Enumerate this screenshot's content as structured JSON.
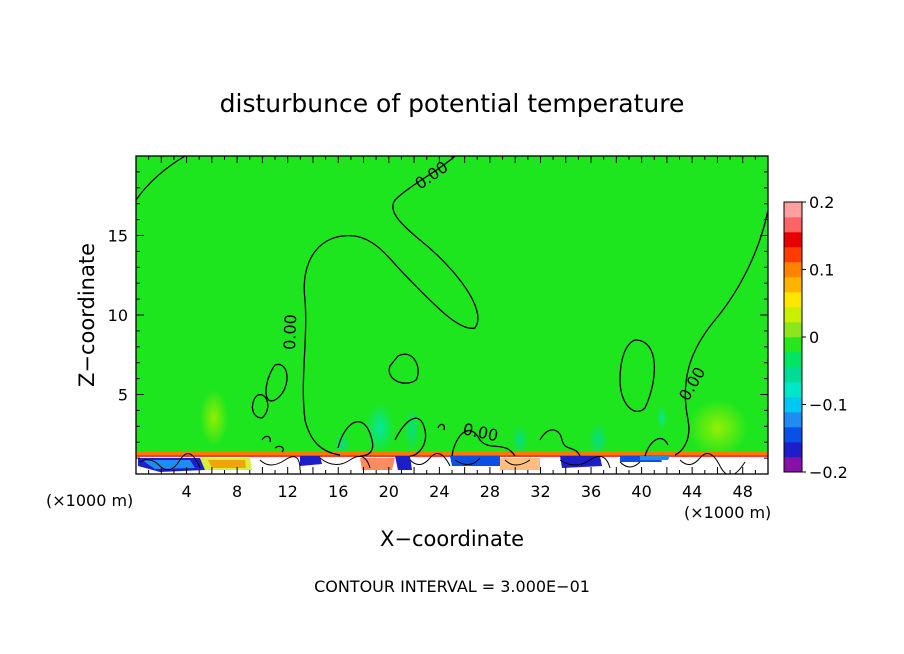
{
  "chart_data": {
    "type": "heatmap",
    "title": "disturbunce of potential temperature",
    "xlabel": "X−coordinate",
    "ylabel": "Z−coordinate",
    "x_unit_left": "(×1000 m)",
    "x_unit_right": "(×1000 m)",
    "footer": "CONTOUR INTERVAL = 3.000E−01",
    "xlim": [
      0,
      50
    ],
    "ylim": [
      0,
      20
    ],
    "x_ticks": [
      4,
      8,
      12,
      16,
      20,
      24,
      28,
      32,
      36,
      40,
      44,
      48
    ],
    "y_ticks": [
      5,
      10,
      15
    ],
    "contour_labels": [
      "0.00",
      "0.00",
      "0.00",
      "0.00"
    ],
    "colorbar": {
      "range": [
        -0.2,
        0.2
      ],
      "tick_values": [
        0.2,
        0.1,
        0,
        -0.1,
        -0.2
      ],
      "tick_labels": [
        "0.2",
        "0.1",
        "0",
        "−0.1",
        "−0.2"
      ],
      "colors": [
        "#8a0fa8",
        "#1e1ec8",
        "#0a50e6",
        "#1e8cf0",
        "#00c8f0",
        "#00e6c8",
        "#00dc96",
        "#00e664",
        "#28e61e",
        "#8ce61e",
        "#c8f000",
        "#ffe600",
        "#ffb400",
        "#ff8200",
        "#ff3c00",
        "#e60000",
        "#ff6464",
        "#ffa0a0"
      ]
    },
    "background_color": "#1ee61e",
    "grid": false
  }
}
